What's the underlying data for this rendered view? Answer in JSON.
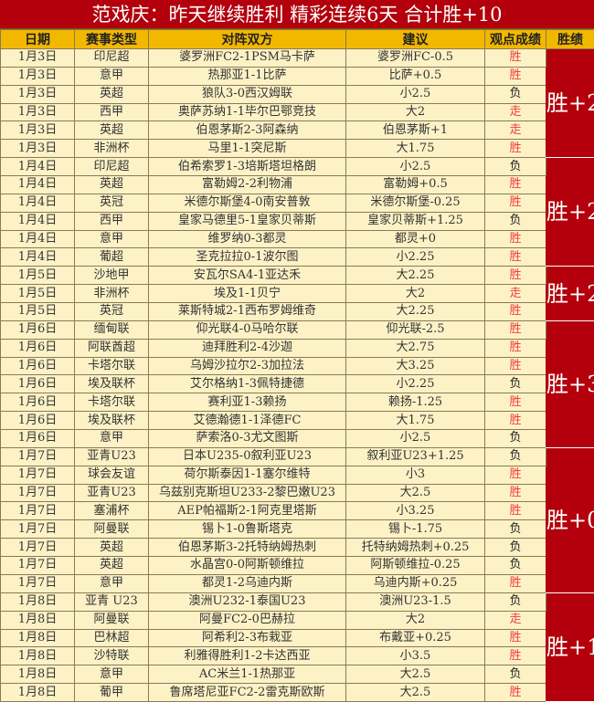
{
  "title": "范戏庆：昨天继续胜利 精彩连续6天 合计胜+10",
  "colors": {
    "title_bg": "#b3000c",
    "header_bg": "#f2b800",
    "row_bg": "#fdf2c6",
    "win_text": "#f03c3c"
  },
  "headers": [
    "日期",
    "赛事类型",
    "对阵双方",
    "建议",
    "观点成绩",
    "胜绩"
  ],
  "groups": [
    {
      "total": "胜+2",
      "rows": [
        [
          "1月3日",
          "印尼超",
          "婆罗洲FC2-1PSM马卡萨",
          "婆罗洲FC-0.5",
          "胜"
        ],
        [
          "1月3日",
          "意甲",
          "热那亚1-1比萨",
          "比萨+0.5",
          "胜"
        ],
        [
          "1月3日",
          "英超",
          "狼队3-0西汉姆联",
          "小2.5",
          "负"
        ],
        [
          "1月3日",
          "西甲",
          "奥萨苏纳1-1毕尔巴鄂竞技",
          "大2",
          "走"
        ],
        [
          "1月3日",
          "英超",
          "伯恩茅斯2-3阿森纳",
          "伯恩茅斯+1",
          "走"
        ],
        [
          "1月3日",
          "非洲杯",
          "马里1-1突尼斯",
          "大1.75",
          "胜"
        ]
      ]
    },
    {
      "total": "胜+2",
      "rows": [
        [
          "1月4日",
          "印尼超",
          "伯希索罗1-3培斯塔坦格朗",
          "小2.5",
          "负"
        ],
        [
          "1月4日",
          "英超",
          "富勒姆2-2利物浦",
          "富勒姆+0.5",
          "胜"
        ],
        [
          "1月4日",
          "英冠",
          "米德尔斯堡4-0南安普敦",
          "米德尔斯堡-0.25",
          "胜"
        ],
        [
          "1月4日",
          "西甲",
          "皇家马德里5-1皇家贝蒂斯",
          "皇家贝蒂斯+1.25",
          "负"
        ],
        [
          "1月4日",
          "意甲",
          "维罗纳0-3都灵",
          "都灵+0",
          "胜"
        ],
        [
          "1月4日",
          "葡超",
          "圣克拉拉0-1波尔图",
          "小2.25",
          "胜"
        ]
      ]
    },
    {
      "total": "胜+2",
      "rows": [
        [
          "1月5日",
          "沙地甲",
          "安瓦尔SA4-1亚达禾",
          "大2.25",
          "胜"
        ],
        [
          "1月5日",
          "非洲杯",
          "埃及1-1贝宁",
          "大2",
          "走"
        ],
        [
          "1月5日",
          "英冠",
          "莱斯特城2-1西布罗姆维奇",
          "大2.25",
          "胜"
        ]
      ]
    },
    {
      "total": "胜+3",
      "rows": [
        [
          "1月6日",
          "缅甸联",
          "仰光联4-0马哈尔联",
          "仰光联-2.5",
          "胜"
        ],
        [
          "1月6日",
          "阿联酋超",
          "迪拜胜利2-4沙迦",
          "大2.75",
          "胜"
        ],
        [
          "1月6日",
          "卡塔尔联",
          "乌姆沙拉尔2-3加拉法",
          "大3.25",
          "胜"
        ],
        [
          "1月6日",
          "埃及联杯",
          "艾尔格纳1-3佩特捷德",
          "小2.25",
          "负"
        ],
        [
          "1月6日",
          "卡塔尔联",
          "赛利亚1-3赖扬",
          "赖扬-1.25",
          "胜"
        ],
        [
          "1月6日",
          "埃及联杯",
          "艾德瀚德1-1泽德FC",
          "大1.75",
          "胜"
        ],
        [
          "1月6日",
          "意甲",
          "萨索洛0-3尤文图斯",
          "小2.5",
          "负"
        ]
      ]
    },
    {
      "total": "胜+0",
      "rows": [
        [
          "1月7日",
          "亚青U23",
          "日本U235-0叙利亚U23",
          "叙利亚U23+1.25",
          "负"
        ],
        [
          "1月7日",
          "球会友谊",
          "荷尔斯泰因1-1塞尔维特",
          "小3",
          "胜"
        ],
        [
          "1月7日",
          "亚青U23",
          "乌兹别克斯坦U233-2黎巴嫩U23",
          "大2.5",
          "胜"
        ],
        [
          "1月7日",
          "塞浦杯",
          "AEP帕福斯2-1阿克里塔斯",
          "小3.25",
          "胜"
        ],
        [
          "1月7日",
          "阿曼联",
          "锡卜1-0鲁斯塔克",
          "锡卜-1.75",
          "负"
        ],
        [
          "1月7日",
          "英超",
          "伯恩茅斯3-2托特纳姆热刺",
          "托特纳姆热刺+0.25",
          "负"
        ],
        [
          "1月7日",
          "英超",
          "水晶宫0-0阿斯顿维拉",
          "阿斯顿维拉-0.25",
          "负"
        ],
        [
          "1月7日",
          "意甲",
          "都灵1-2乌迪内斯",
          "乌迪内斯+0.25",
          "胜"
        ]
      ]
    },
    {
      "total": "胜+1",
      "rows": [
        [
          "1月8日",
          "亚青 U23",
          "澳洲U232-1泰国U23",
          "澳洲U23-1.5",
          "负"
        ],
        [
          "1月8日",
          "阿曼联",
          "阿曼FC2-0巴赫拉",
          "大2",
          "走"
        ],
        [
          "1月8日",
          "巴林超",
          "阿希利2-3布栽亚",
          "布戴亚+0.25",
          "胜"
        ],
        [
          "1月8日",
          "沙特联",
          "利雅得胜利1-2卡达西亚",
          "小3.5",
          "胜"
        ],
        [
          "1月8日",
          "意甲",
          "AC米兰1-1热那亚",
          "大2.5",
          "负"
        ],
        [
          "1月8日",
          "葡甲",
          "鲁席塔尼亚FC2-2雷克斯欧斯",
          "大2.5",
          "胜"
        ]
      ]
    }
  ]
}
